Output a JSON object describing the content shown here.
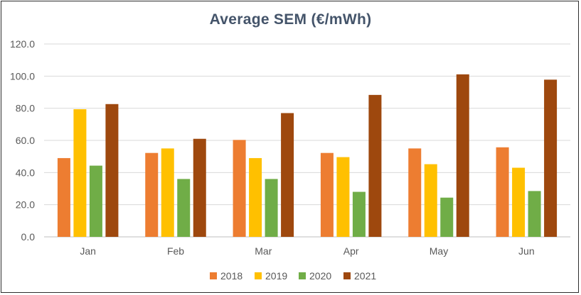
{
  "chart_data": {
    "type": "bar",
    "title": "Average SEM (€/mWh)",
    "xlabel": "",
    "ylabel": "",
    "ylim": [
      0,
      120
    ],
    "yticks": [
      "0.0",
      "20.0",
      "40.0",
      "60.0",
      "80.0",
      "100.0",
      "120.0"
    ],
    "grid": true,
    "legend_position": "bottom",
    "categories": [
      "Jan",
      "Feb",
      "Mar",
      "Apr",
      "May",
      "Jun"
    ],
    "series": [
      {
        "name": "2018",
        "color": "#ED7D31",
        "values": [
          49.0,
          52.2,
          60.3,
          52.2,
          55.0,
          55.7
        ]
      },
      {
        "name": "2019",
        "color": "#FFC000",
        "values": [
          79.4,
          55.0,
          49.0,
          49.6,
          45.2,
          43.0
        ]
      },
      {
        "name": "2020",
        "color": "#70AD47",
        "values": [
          44.3,
          36.0,
          36.0,
          28.0,
          24.4,
          28.5
        ]
      },
      {
        "name": "2021",
        "color": "#9E480E",
        "values": [
          82.6,
          61.0,
          77.0,
          88.3,
          101.1,
          97.8
        ]
      }
    ]
  }
}
